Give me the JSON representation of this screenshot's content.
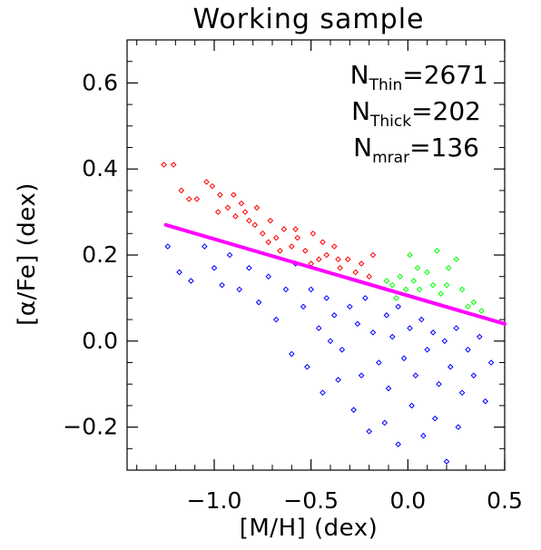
{
  "chart_data": {
    "type": "scatter",
    "title": "Working sample",
    "xlabel": "[M/H] (dex)",
    "ylabel": "[α/Fe] (dex)",
    "xlim": [
      -1.45,
      0.5
    ],
    "ylim": [
      -0.3,
      0.7
    ],
    "x_ticks": [
      {
        "value": -1.0,
        "label": "−1.0"
      },
      {
        "value": -0.5,
        "label": "−0.5"
      },
      {
        "value": 0.0,
        "label": "0.0"
      },
      {
        "value": 0.5,
        "label": "0.5"
      }
    ],
    "y_ticks": [
      {
        "value": -0.2,
        "label": "−0.2"
      },
      {
        "value": 0.0,
        "label": "0.0"
      },
      {
        "value": 0.2,
        "label": "0.2"
      },
      {
        "value": 0.4,
        "label": "0.4"
      },
      {
        "value": 0.6,
        "label": "0.6"
      }
    ],
    "legend": [
      {
        "prefix": "N",
        "subscript": "Thin",
        "value": "=2671",
        "color": "#0000ff"
      },
      {
        "prefix": "N",
        "subscript": "Thick",
        "value": "=202",
        "color": "#ff0000"
      },
      {
        "prefix": "N",
        "subscript": "mrar",
        "value": "=136",
        "color": "#00ff00"
      }
    ],
    "legend_position": "top-right",
    "marker": "diamond",
    "grid": false,
    "series": [
      {
        "color": "#ff0000",
        "points": [
          [
            -1.26,
            0.41
          ],
          [
            -1.21,
            0.41
          ],
          [
            -1.17,
            0.35
          ],
          [
            -1.13,
            0.33
          ],
          [
            -1.09,
            0.33
          ],
          [
            -1.04,
            0.37
          ],
          [
            -1.01,
            0.36
          ],
          [
            -0.97,
            0.34
          ],
          [
            -0.93,
            0.31
          ],
          [
            -0.89,
            0.29
          ],
          [
            -0.86,
            0.32
          ],
          [
            -0.82,
            0.28
          ],
          [
            -0.79,
            0.27
          ],
          [
            -0.75,
            0.25
          ],
          [
            -0.71,
            0.28
          ],
          [
            -0.68,
            0.24
          ],
          [
            -0.64,
            0.26
          ],
          [
            -0.6,
            0.22
          ],
          [
            -0.57,
            0.24
          ],
          [
            -0.53,
            0.21
          ],
          [
            -0.49,
            0.25
          ],
          [
            -0.46,
            0.19
          ],
          [
            -0.42,
            0.2
          ],
          [
            -0.38,
            0.22
          ],
          [
            -0.35,
            0.17
          ],
          [
            -0.31,
            0.19
          ],
          [
            -0.27,
            0.16
          ],
          [
            -0.24,
            0.18
          ],
          [
            -0.2,
            0.15
          ],
          [
            -0.18,
            0.2
          ],
          [
            -0.98,
            0.3
          ],
          [
            -0.9,
            0.34
          ],
          [
            -0.84,
            0.3
          ],
          [
            -0.78,
            0.31
          ],
          [
            -0.72,
            0.23
          ],
          [
            -0.66,
            0.21
          ],
          [
            -0.58,
            0.26
          ],
          [
            -0.5,
            0.18
          ],
          [
            -0.44,
            0.23
          ],
          [
            -0.36,
            0.19
          ]
        ]
      },
      {
        "color": "#00ff00",
        "points": [
          [
            -0.11,
            0.14
          ],
          [
            -0.08,
            0.13
          ],
          [
            -0.04,
            0.15
          ],
          [
            -0.01,
            0.12
          ],
          [
            0.03,
            0.14
          ],
          [
            0.06,
            0.12
          ],
          [
            0.1,
            0.16
          ],
          [
            0.13,
            0.13
          ],
          [
            0.17,
            0.11
          ],
          [
            0.21,
            0.17
          ],
          [
            0.25,
            0.19
          ],
          [
            0.28,
            0.12
          ],
          [
            0.31,
            0.08
          ],
          [
            0.34,
            0.09
          ],
          [
            0.38,
            0.07
          ],
          [
            0.01,
            0.2
          ],
          [
            0.05,
            0.17
          ],
          [
            0.15,
            0.21
          ],
          [
            -0.06,
            0.1
          ],
          [
            0.2,
            0.13
          ]
        ]
      },
      {
        "color": "#0000ff",
        "points": [
          [
            -1.24,
            0.22
          ],
          [
            -1.18,
            0.16
          ],
          [
            -1.12,
            0.14
          ],
          [
            -1.05,
            0.22
          ],
          [
            -1.0,
            0.17
          ],
          [
            -0.96,
            0.13
          ],
          [
            -0.92,
            0.2
          ],
          [
            -0.87,
            0.12
          ],
          [
            -0.82,
            0.17
          ],
          [
            -0.77,
            0.09
          ],
          [
            -0.72,
            0.15
          ],
          [
            -0.68,
            0.05
          ],
          [
            -0.63,
            0.12
          ],
          [
            -0.58,
            0.18
          ],
          [
            -0.54,
            0.08
          ],
          [
            -0.5,
            0.12
          ],
          [
            -0.46,
            0.03
          ],
          [
            -0.42,
            0.1
          ],
          [
            -0.38,
            0.06
          ],
          [
            -0.34,
            -0.02
          ],
          [
            -0.3,
            0.08
          ],
          [
            -0.26,
            0.04
          ],
          [
            -0.22,
            0.1
          ],
          [
            -0.18,
            0.02
          ],
          [
            -0.15,
            -0.05
          ],
          [
            -0.11,
            0.06
          ],
          [
            -0.08,
            0.01
          ],
          [
            -0.05,
            0.08
          ],
          [
            -0.02,
            -0.04
          ],
          [
            0.01,
            0.03
          ],
          [
            0.04,
            -0.08
          ],
          [
            0.07,
            0.05
          ],
          [
            0.1,
            -0.02
          ],
          [
            0.13,
            0.02
          ],
          [
            0.16,
            -0.1
          ],
          [
            0.19,
            0.0
          ],
          [
            0.22,
            -0.06
          ],
          [
            0.25,
            0.03
          ],
          [
            0.28,
            -0.12
          ],
          [
            0.31,
            -0.02
          ],
          [
            0.34,
            -0.08
          ],
          [
            0.37,
            0.01
          ],
          [
            0.4,
            -0.14
          ],
          [
            0.43,
            -0.05
          ],
          [
            -0.44,
            -0.12
          ],
          [
            -0.36,
            -0.09
          ],
          [
            -0.28,
            -0.16
          ],
          [
            -0.2,
            -0.21
          ],
          [
            -0.12,
            -0.19
          ],
          [
            -0.05,
            -0.24
          ],
          [
            0.02,
            -0.15
          ],
          [
            0.08,
            -0.22
          ],
          [
            0.14,
            -0.18
          ],
          [
            0.2,
            -0.28
          ],
          [
            0.26,
            -0.2
          ],
          [
            -0.6,
            -0.03
          ],
          [
            -0.52,
            -0.06
          ],
          [
            -0.4,
            0.0
          ],
          [
            -0.24,
            -0.08
          ],
          [
            -0.1,
            -0.11
          ]
        ]
      }
    ],
    "trend_line": {
      "color": "#ff00ff",
      "points": [
        [
          -1.25,
          0.27
        ],
        [
          0.5,
          0.04
        ]
      ]
    }
  }
}
